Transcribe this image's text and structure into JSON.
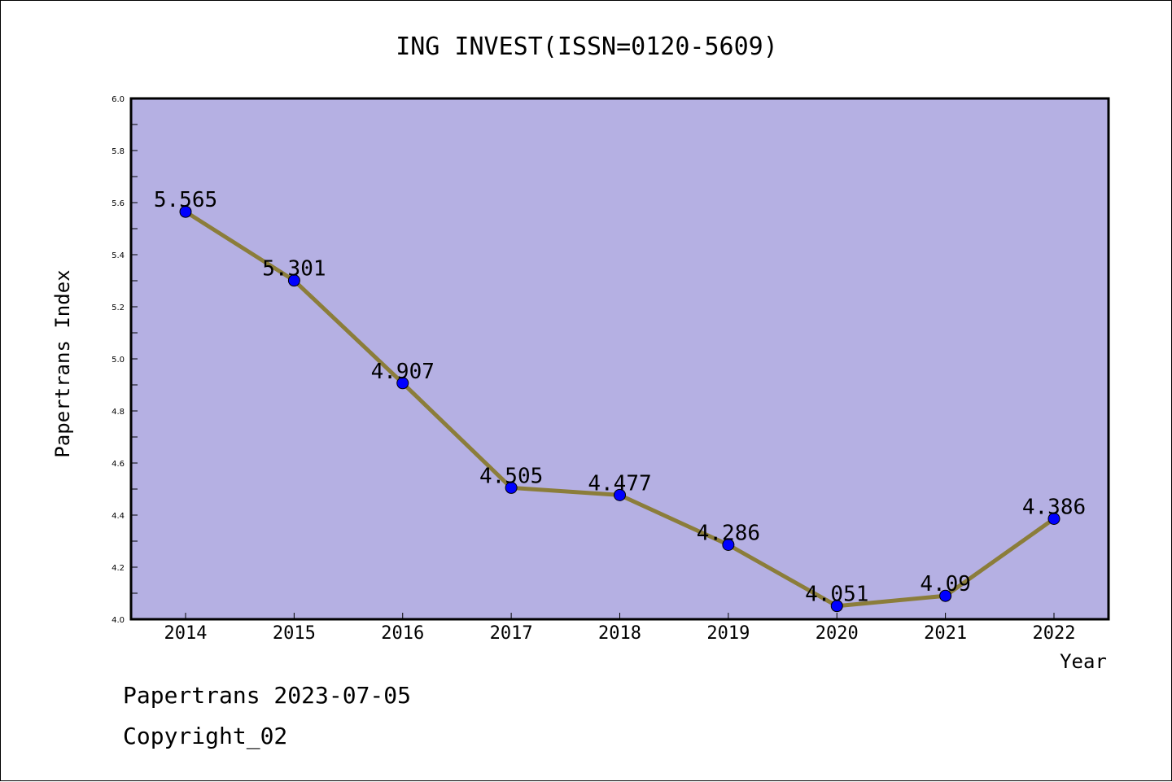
{
  "chart_data": {
    "type": "line",
    "title": "ING INVEST(ISSN=0120-5609)",
    "xlabel": "Year",
    "ylabel": "Papertrans Index",
    "x": [
      "2014",
      "2015",
      "2016",
      "2017",
      "2018",
      "2019",
      "2020",
      "2021",
      "2022"
    ],
    "series": [
      {
        "values": [
          5.565,
          5.301,
          4.907,
          4.505,
          4.477,
          4.286,
          4.051,
          4.09,
          4.386
        ],
        "labels": [
          "5.565",
          "5.301",
          "4.907",
          "4.505",
          "4.477",
          "4.286",
          "4.051",
          "4.09",
          "4.386"
        ]
      }
    ],
    "ylim": [
      4.0,
      6.0
    ],
    "yticks": [
      "4.0",
      "4.2",
      "4.4",
      "4.6",
      "4.8",
      "5.0",
      "5.2",
      "5.4",
      "5.6",
      "5.8",
      "6.0"
    ],
    "grid": false,
    "colors": {
      "plot_background": "#b5b0e3",
      "line": "#8b7d3a",
      "marker": "#0000ff"
    }
  },
  "footer": {
    "line1": "Papertrans 2023-07-05",
    "line2": "Copyright_02"
  }
}
